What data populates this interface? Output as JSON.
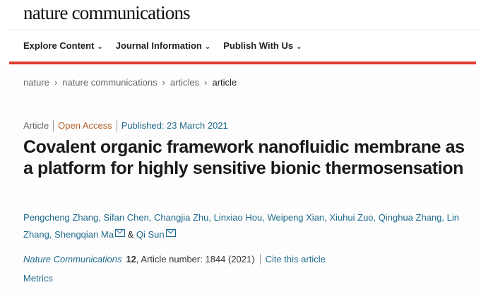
{
  "header": {
    "logo": "nature communications"
  },
  "nav": {
    "items": [
      {
        "label": "Explore Content"
      },
      {
        "label": "Journal Information"
      },
      {
        "label": "Publish With Us"
      }
    ],
    "accent": "#e03a2f"
  },
  "breadcrumb": [
    "nature",
    "nature communications",
    "articles",
    "article"
  ],
  "meta": {
    "type": "Article",
    "access": "Open Access",
    "published": "Published: 23 March 2021"
  },
  "article": {
    "title": "Covalent organic framework nanofluidic membrane as a platform for highly sensitive bionic thermosensation",
    "authors_plain": "Pengcheng Zhang, Sifan Chen, Changjia Zhu, Linxiao Hou, Weipeng Xian, Xiuhui Zuo, Qinghua Zhang, Lin Zhang, ",
    "author_ma": "Shengqian Ma",
    "amp": "&",
    "author_sun": "Qi Sun",
    "journal": "Nature Communications",
    "volume": "12",
    "article_number": ", Article number: 1844 (2021)",
    "cite": "Cite this article",
    "metrics": "Metrics"
  }
}
